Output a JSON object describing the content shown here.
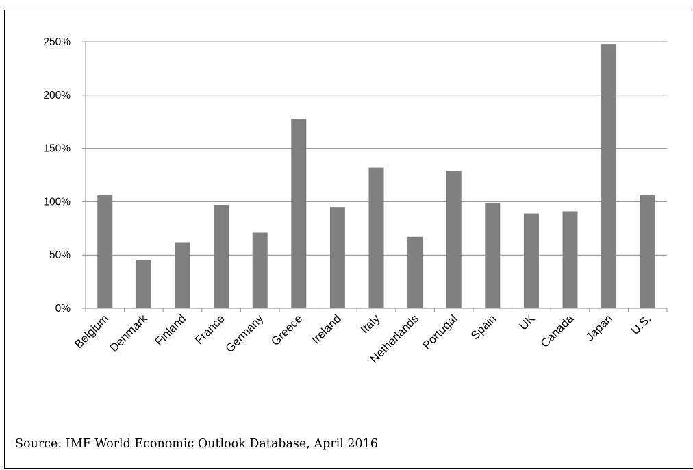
{
  "chart_data": {
    "type": "bar",
    "categories": [
      "Belgium",
      "Denmark",
      "Finland",
      "France",
      "Germany",
      "Greece",
      "Ireland",
      "Italy",
      "Netherlands",
      "Portugal",
      "Spain",
      "UK",
      "Canada",
      "Japan",
      "U.S."
    ],
    "values": [
      106,
      45,
      62,
      97,
      71,
      178,
      95,
      132,
      67,
      129,
      99,
      89,
      91,
      248,
      106
    ],
    "y_ticks": [
      "0%",
      "50%",
      "100%",
      "150%",
      "200%",
      "250%"
    ],
    "ylim": [
      0,
      250
    ],
    "grid": true,
    "bar_color": "#808080"
  },
  "source_note": "Source: IMF World Economic Outlook Database, April 2016"
}
